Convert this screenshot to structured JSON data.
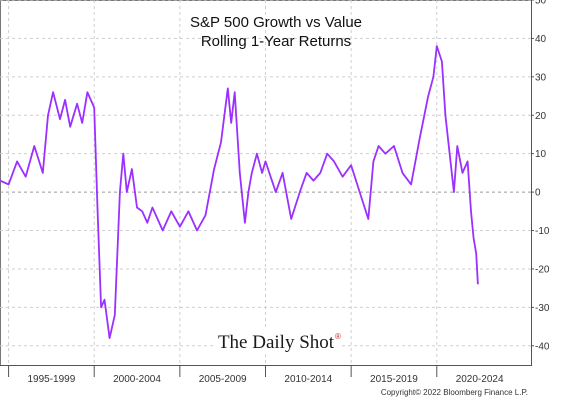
{
  "chart_data": {
    "type": "line",
    "title": "S&P 500 Growth vs Value",
    "subtitle": "Rolling 1-Year Returns",
    "xlabel": "",
    "ylabel": "",
    "ylim": [
      -45,
      50
    ],
    "xlim": [
      1994.5,
      2025.5
    ],
    "yticks": [
      50,
      40,
      30,
      20,
      10,
      0,
      -10,
      -20,
      -30,
      -40
    ],
    "ytick_labels": [
      "50",
      "40",
      "30",
      "20",
      "10",
      "0",
      "-10",
      "-20",
      "-30",
      "-40"
    ],
    "x_period_labels": [
      "1995-1999",
      "2000-2004",
      "2005-2009",
      "2010-2014",
      "2015-2019",
      "2020-2024"
    ],
    "x_period_starts": [
      1995,
      2000,
      2005,
      2010,
      2015,
      2020
    ],
    "y_axis_side": "right",
    "grid": "dashed horizontal and vertical",
    "zero_line": true,
    "series": [
      {
        "color": "#9b30ff",
        "x": [
          1994.5,
          1995.0,
          1995.5,
          1996.0,
          1996.5,
          1997.0,
          1997.3,
          1997.6,
          1998.0,
          1998.3,
          1998.6,
          1999.0,
          1999.3,
          1999.6,
          2000.0,
          2000.2,
          2000.4,
          2000.6,
          2000.9,
          2001.2,
          2001.5,
          2001.7,
          2001.9,
          2002.2,
          2002.5,
          2002.8,
          2003.1,
          2003.4,
          2003.7,
          2004.0,
          2004.5,
          2005.0,
          2005.5,
          2006.0,
          2006.5,
          2007.0,
          2007.4,
          2007.8,
          2008.0,
          2008.2,
          2008.5,
          2008.8,
          2009.0,
          2009.2,
          2009.5,
          2009.8,
          2010.0,
          2010.3,
          2010.6,
          2011.0,
          2011.5,
          2012.0,
          2012.4,
          2012.8,
          2013.2,
          2013.6,
          2014.0,
          2014.5,
          2015.0,
          2015.5,
          2016.0,
          2016.3,
          2016.6,
          2017.0,
          2017.5,
          2018.0,
          2018.5,
          2019.0,
          2019.5,
          2019.8,
          2020.0,
          2020.3,
          2020.5,
          2020.8,
          2021.0,
          2021.2,
          2021.5,
          2021.8,
          2022.0,
          2022.15,
          2022.3,
          2022.4
        ],
        "y": [
          3,
          2,
          8,
          4,
          12,
          5,
          20,
          26,
          19,
          24,
          17,
          23,
          18,
          26,
          22,
          -5,
          -30,
          -28,
          -38,
          -32,
          0,
          10,
          0,
          6,
          -4,
          -5,
          -8,
          -4,
          -7,
          -10,
          -5,
          -9,
          -5,
          -10,
          -6,
          6,
          13,
          27,
          18,
          26,
          5,
          -8,
          0,
          5,
          10,
          5,
          8,
          4,
          0,
          5,
          -7,
          0,
          5,
          3,
          5,
          10,
          8,
          4,
          7,
          0,
          -7,
          8,
          12,
          10,
          12,
          5,
          2,
          14,
          25,
          30,
          38,
          34,
          20,
          8,
          0,
          12,
          5,
          8,
          -5,
          -12,
          -16,
          -24
        ]
      }
    ]
  },
  "branding": {
    "logo_text": "The Daily Shot",
    "logo_mark": "®"
  },
  "footer": {
    "copyright": "Copyright© 2022 Bloomberg Finance L.P."
  }
}
